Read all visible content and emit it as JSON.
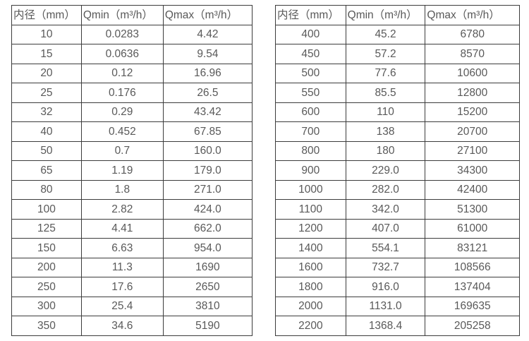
{
  "page": {
    "background": "#ffffff",
    "text_color": "#595959",
    "border_color": "#3c3c3c"
  },
  "tables": [
    {
      "name": "flow-table-small-diameters",
      "headers": [
        "内径（mm）",
        "Qmin（m³/h）",
        "Qmax（m³/h）"
      ],
      "rows": [
        [
          "10",
          "0.0283",
          "4.42"
        ],
        [
          "15",
          "0.0636",
          "9.54"
        ],
        [
          "20",
          "0.12",
          "16.96"
        ],
        [
          "25",
          "0.176",
          "26.5"
        ],
        [
          "32",
          "0.29",
          "43.42"
        ],
        [
          "40",
          "0.452",
          "67.85"
        ],
        [
          "50",
          "0.7",
          "160.0"
        ],
        [
          "65",
          "1.19",
          "179.0"
        ],
        [
          "80",
          "1.8",
          "271.0"
        ],
        [
          "100",
          "2.82",
          "424.0"
        ],
        [
          "125",
          "4.41",
          "662.0"
        ],
        [
          "150",
          "6.63",
          "954.0"
        ],
        [
          "200",
          "11.3",
          "1690"
        ],
        [
          "250",
          "17.6",
          "2650"
        ],
        [
          "300",
          "25.4",
          "3810"
        ],
        [
          "350",
          "34.6",
          "5190"
        ]
      ]
    },
    {
      "name": "flow-table-large-diameters",
      "headers": [
        "内径（mm）",
        "Qmin（m³/h）",
        "Qmax（m³/h）"
      ],
      "rows": [
        [
          "400",
          "45.2",
          "6780"
        ],
        [
          "450",
          "57.2",
          "8570"
        ],
        [
          "500",
          "77.6",
          "10600"
        ],
        [
          "550",
          "85.5",
          "12800"
        ],
        [
          "600",
          "110",
          "15200"
        ],
        [
          "700",
          "138",
          "20700"
        ],
        [
          "800",
          "180",
          "27100"
        ],
        [
          "900",
          "229.0",
          "34300"
        ],
        [
          "1000",
          "282.0",
          "42400"
        ],
        [
          "1100",
          "342.0",
          "51300"
        ],
        [
          "1200",
          "407.0",
          "61000"
        ],
        [
          "1400",
          "554.1",
          "83121"
        ],
        [
          "1600",
          "732.7",
          "108566"
        ],
        [
          "1800",
          "916.0",
          "137404"
        ],
        [
          "2000",
          "1131.0",
          "169635"
        ],
        [
          "2200",
          "1368.4",
          "205258"
        ]
      ]
    }
  ]
}
